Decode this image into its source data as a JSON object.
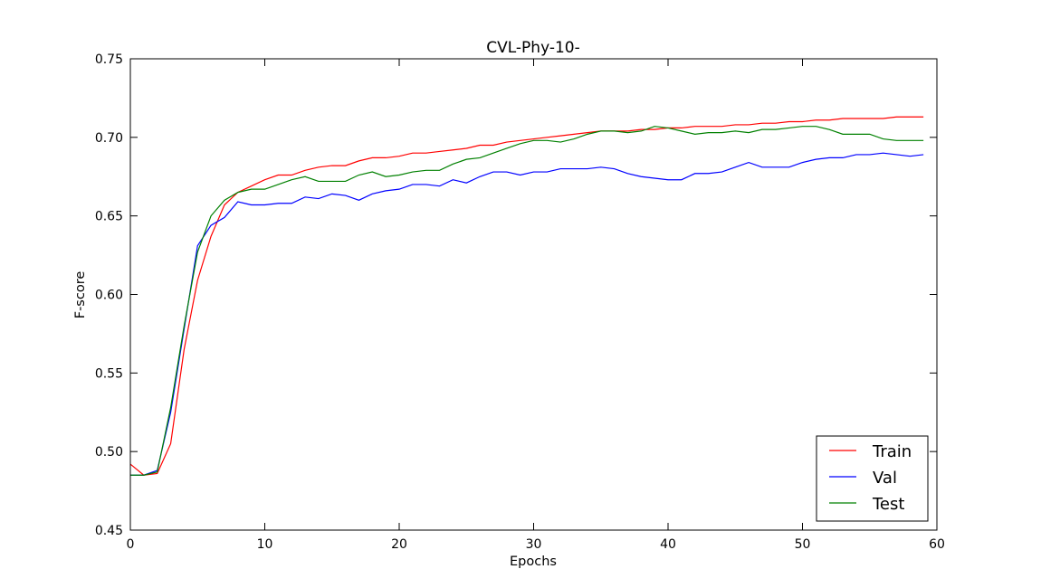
{
  "chart_data": {
    "type": "line",
    "title": "CVL-Phy-10-",
    "xlabel": "Epochs",
    "ylabel": "F-score",
    "xlim": [
      0,
      60
    ],
    "ylim": [
      0.45,
      0.75
    ],
    "xticks": [
      0,
      10,
      20,
      30,
      40,
      50,
      60
    ],
    "yticks": [
      0.45,
      0.5,
      0.55,
      0.6,
      0.65,
      0.7,
      0.75
    ],
    "ytick_labels": [
      "0.45",
      "0.50",
      "0.55",
      "0.60",
      "0.65",
      "0.70",
      "0.75"
    ],
    "grid": false,
    "legend_position": "bottom-right",
    "x": [
      0,
      1,
      2,
      3,
      4,
      5,
      6,
      7,
      8,
      9,
      10,
      11,
      12,
      13,
      14,
      15,
      16,
      17,
      18,
      19,
      20,
      21,
      22,
      23,
      24,
      25,
      26,
      27,
      28,
      29,
      30,
      31,
      32,
      33,
      34,
      35,
      36,
      37,
      38,
      39,
      40,
      41,
      42,
      43,
      44,
      45,
      46,
      47,
      48,
      49,
      50,
      51,
      52,
      53,
      54,
      55,
      56,
      57,
      58,
      59
    ],
    "series": [
      {
        "name": "Train",
        "color": "#ff0000",
        "values": [
          0.492,
          0.485,
          0.486,
          0.505,
          0.565,
          0.609,
          0.637,
          0.657,
          0.665,
          0.669,
          0.673,
          0.676,
          0.676,
          0.679,
          0.681,
          0.682,
          0.682,
          0.685,
          0.687,
          0.687,
          0.688,
          0.69,
          0.69,
          0.691,
          0.692,
          0.693,
          0.695,
          0.695,
          0.697,
          0.698,
          0.699,
          0.7,
          0.701,
          0.702,
          0.703,
          0.704,
          0.704,
          0.704,
          0.705,
          0.705,
          0.706,
          0.706,
          0.707,
          0.707,
          0.707,
          0.708,
          0.708,
          0.709,
          0.709,
          0.71,
          0.71,
          0.711,
          0.711,
          0.712,
          0.712,
          0.712,
          0.712,
          0.713,
          0.713,
          0.713
        ]
      },
      {
        "name": "Val",
        "color": "#0000ff",
        "values": [
          0.485,
          0.485,
          0.488,
          0.525,
          0.578,
          0.631,
          0.644,
          0.649,
          0.659,
          0.657,
          0.657,
          0.658,
          0.658,
          0.662,
          0.661,
          0.664,
          0.663,
          0.66,
          0.664,
          0.666,
          0.667,
          0.67,
          0.67,
          0.669,
          0.673,
          0.671,
          0.675,
          0.678,
          0.678,
          0.676,
          0.678,
          0.678,
          0.68,
          0.68,
          0.68,
          0.681,
          0.68,
          0.677,
          0.675,
          0.674,
          0.673,
          0.673,
          0.677,
          0.677,
          0.678,
          0.681,
          0.684,
          0.681,
          0.681,
          0.681,
          0.684,
          0.686,
          0.687,
          0.687,
          0.689,
          0.689,
          0.69,
          0.689,
          0.688,
          0.689
        ]
      },
      {
        "name": "Test",
        "color": "#008000",
        "values": [
          0.485,
          0.485,
          0.487,
          0.528,
          0.58,
          0.627,
          0.65,
          0.66,
          0.665,
          0.667,
          0.667,
          0.67,
          0.673,
          0.675,
          0.672,
          0.672,
          0.672,
          0.676,
          0.678,
          0.675,
          0.676,
          0.678,
          0.679,
          0.679,
          0.683,
          0.686,
          0.687,
          0.69,
          0.693,
          0.696,
          0.698,
          0.698,
          0.697,
          0.699,
          0.702,
          0.704,
          0.704,
          0.703,
          0.704,
          0.707,
          0.706,
          0.704,
          0.702,
          0.703,
          0.703,
          0.704,
          0.703,
          0.705,
          0.705,
          0.706,
          0.707,
          0.707,
          0.705,
          0.702,
          0.702,
          0.702,
          0.699,
          0.698,
          0.698,
          0.698
        ]
      }
    ]
  }
}
